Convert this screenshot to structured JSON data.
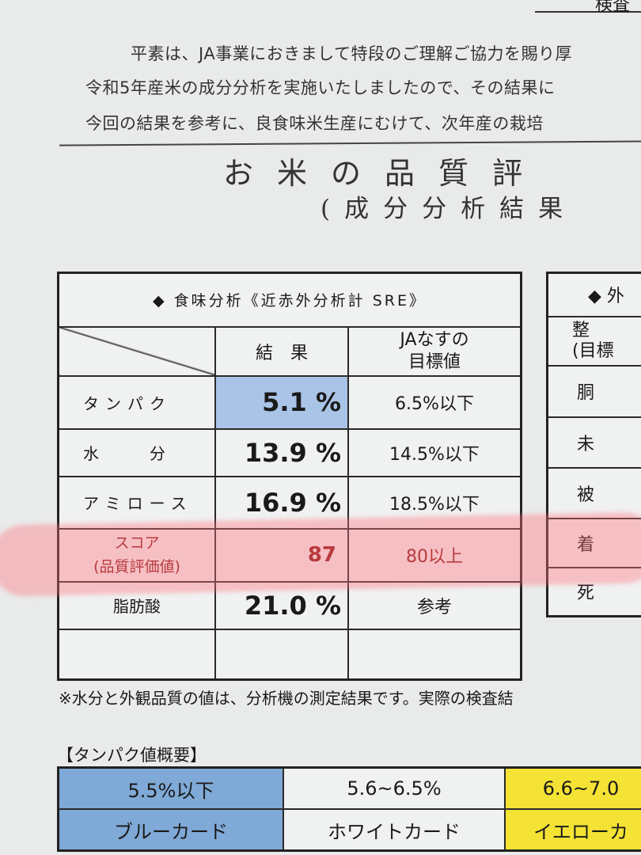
{
  "header": {
    "top_right": "検査"
  },
  "intro": [
    "平素は、JA事業におきまして特段のご理解ご協力を賜り厚",
    "令和5年産米の成分分析を実施いたしましたので、その結果に",
    "今回の結果を参考に、良食味米生産にむけて、次年産の栽培"
  ],
  "title": "お米の品質評",
  "subtitle": "(成分分析結果",
  "taste_table": {
    "heading": "◆ 食味分析《近赤外分析計 SRE》",
    "col_result": "結　果",
    "col_target_1": "JAなすの",
    "col_target_2": "目標値",
    "rows": [
      {
        "label": "タンパク",
        "value": "5.1 %",
        "target": "6.5%以下"
      },
      {
        "label": "水　　分",
        "value": "13.9 %",
        "target": "14.5%以下"
      },
      {
        "label": "アミロース",
        "value": "16.9 %",
        "target": "18.5%以下"
      },
      {
        "label": "スコア",
        "label2": "(品質評価値)",
        "value": "87",
        "target": "80以上"
      },
      {
        "label": "脂肪酸",
        "value": "21.0 %",
        "target": "参考"
      }
    ]
  },
  "appearance_table": {
    "heading": "◆ 外",
    "rows": [
      "整\n(目標",
      "胴",
      "未",
      "被",
      "着",
      "死"
    ]
  },
  "note": "※水分と外観品質の値は、分析機の測定結果です。実際の検査結",
  "protein_summary": {
    "heading": "【タンパク値概要】",
    "ranges": [
      "5.5%以下",
      "5.6~6.5%",
      "6.6~7.0"
    ],
    "cards": [
      "ブルーカード",
      "ホワイトカード",
      "イエローカ"
    ]
  },
  "colors": {
    "blue": "#a9c4e6",
    "yellow": "#f4e234",
    "score_red": "#8b1a1a",
    "highlight": "#ff8a90"
  }
}
